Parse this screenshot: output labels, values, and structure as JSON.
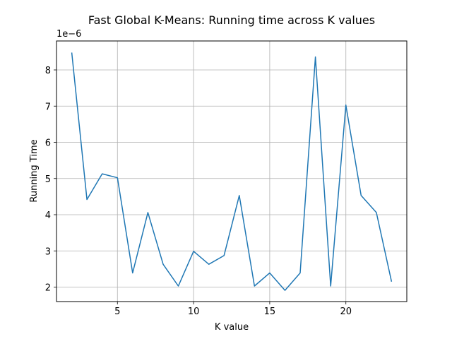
{
  "chart_data": {
    "type": "line",
    "title": "Fast Global K-Means: Running time across K values",
    "xlabel": "K value",
    "ylabel": "Running Time",
    "y_scale_label": "1e−6",
    "xlim": [
      1.0,
      24.0
    ],
    "ylim": [
      1.6e-06,
      8.8e-06
    ],
    "x_ticks": [
      5,
      10,
      15,
      20
    ],
    "x_tick_labels": [
      "5",
      "10",
      "15",
      "20"
    ],
    "y_ticks": [
      2e-06,
      3e-06,
      4e-06,
      5e-06,
      6e-06,
      7e-06,
      8e-06
    ],
    "y_tick_labels": [
      "2",
      "3",
      "4",
      "5",
      "6",
      "7",
      "8"
    ],
    "grid": true,
    "series": [
      {
        "color": "#1f77b4",
        "x": [
          2,
          3,
          4,
          5,
          6,
          7,
          8,
          9,
          10,
          11,
          12,
          13,
          14,
          15,
          16,
          17,
          18,
          19,
          20,
          21,
          22,
          23
        ],
        "y": [
          8.48e-06,
          4.42e-06,
          5.13e-06,
          5.02e-06,
          2.39e-06,
          4.06e-06,
          2.63e-06,
          2.03e-06,
          2.99e-06,
          2.63e-06,
          2.87e-06,
          4.53e-06,
          2.03e-06,
          2.39e-06,
          1.91e-06,
          2.39e-06,
          8.36e-06,
          2.03e-06,
          7.03e-06,
          4.53e-06,
          4.06e-06,
          2.15e-06
        ]
      }
    ]
  }
}
